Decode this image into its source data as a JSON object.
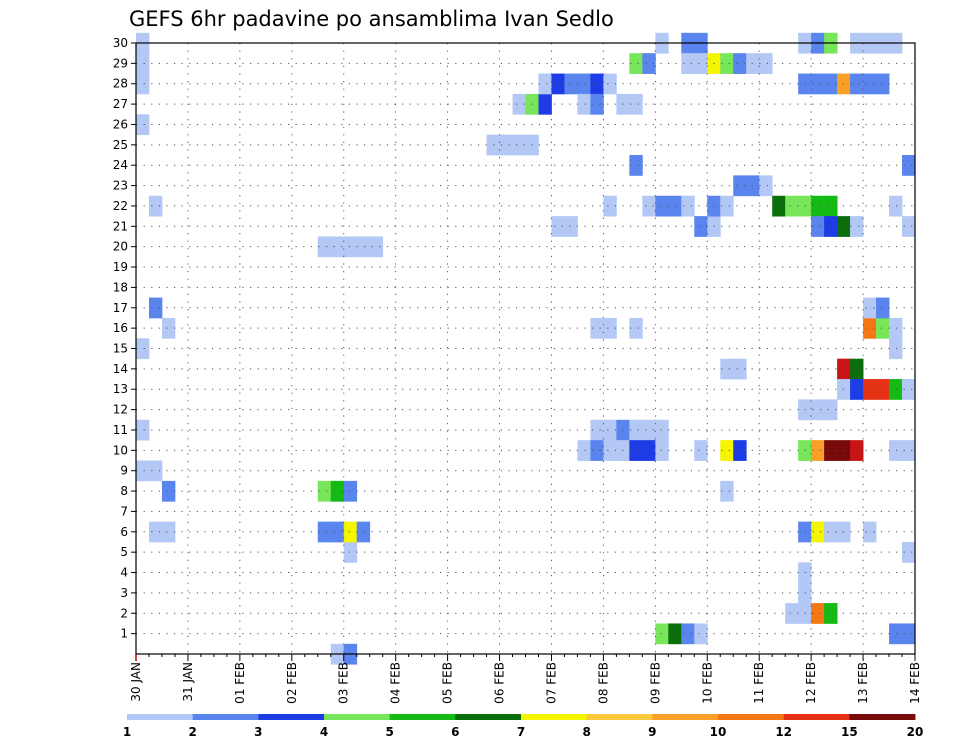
{
  "chart_data": {
    "type": "heatmap",
    "title": "GEFS 6hr padavine po ansamblima Ivan Sedlo",
    "x_tick_labels": [
      "30 JAN",
      "31 JAN",
      "01 FEB",
      "02 FEB",
      "03 FEB",
      "04 FEB",
      "05 FEB",
      "06 FEB",
      "07 FEB",
      "08 FEB",
      "09 FEB",
      "10 FEB",
      "11 FEB",
      "12 FEB",
      "13 FEB",
      "14 FEB"
    ],
    "y_tick_labels": [
      "1",
      "2",
      "3",
      "4",
      "5",
      "6",
      "7",
      "8",
      "9",
      "10",
      "11",
      "12",
      "13",
      "14",
      "15",
      "16",
      "17",
      "18",
      "19",
      "20",
      "21",
      "22",
      "23",
      "24",
      "25",
      "26",
      "27",
      "28",
      "29",
      "30"
    ],
    "xlim": [
      0,
      60
    ],
    "ylim": [
      0,
      30
    ],
    "x_unit": "6-hour steps from 30 JAN 00Z",
    "grid": "dotted",
    "colorbar": {
      "labels": [
        "1",
        "2",
        "3",
        "4",
        "5",
        "6",
        "7",
        "8",
        "9",
        "10",
        "12",
        "15",
        "20"
      ],
      "colors": [
        "#b4c8f5",
        "#5a84ee",
        "#1e3ce6",
        "#78e65a",
        "#14bb14",
        "#0a6e0a",
        "#f5f500",
        "#fac83c",
        "#faa028",
        "#f57814",
        "#e63214",
        "#c81414",
        "#780a0a"
      ]
    },
    "cells": [
      [
        0,
        30,
        1
      ],
      [
        0,
        29,
        1
      ],
      [
        0,
        28,
        1
      ],
      [
        0,
        26,
        1
      ],
      [
        0,
        15,
        1
      ],
      [
        0,
        11,
        1
      ],
      [
        0,
        9,
        1
      ],
      [
        1,
        9,
        1
      ],
      [
        1,
        22,
        1
      ],
      [
        1,
        17,
        2
      ],
      [
        1,
        6,
        1
      ],
      [
        2,
        16,
        1
      ],
      [
        2,
        8,
        2
      ],
      [
        2,
        6,
        1
      ],
      [
        14,
        20,
        1
      ],
      [
        15,
        20,
        1
      ],
      [
        16,
        20,
        1
      ],
      [
        17,
        20,
        1
      ],
      [
        18,
        20,
        1
      ],
      [
        14,
        8,
        4
      ],
      [
        15,
        8,
        5
      ],
      [
        16,
        8,
        2
      ],
      [
        16,
        5,
        1
      ],
      [
        14,
        6,
        2
      ],
      [
        15,
        6,
        2
      ],
      [
        16,
        6,
        7
      ],
      [
        17,
        6,
        2
      ],
      [
        15,
        0,
        1
      ],
      [
        16,
        0,
        2
      ],
      [
        27,
        25,
        1
      ],
      [
        28,
        25,
        1
      ],
      [
        29,
        25,
        1
      ],
      [
        30,
        25,
        1
      ],
      [
        29,
        27,
        1
      ],
      [
        30,
        27,
        4
      ],
      [
        31,
        27,
        3
      ],
      [
        31,
        28,
        1
      ],
      [
        32,
        28,
        3
      ],
      [
        33,
        28,
        2
      ],
      [
        34,
        28,
        2
      ],
      [
        35,
        28,
        3
      ],
      [
        36,
        28,
        1
      ],
      [
        32,
        21,
        1
      ],
      [
        33,
        21,
        1
      ],
      [
        34,
        27,
        1
      ],
      [
        35,
        27,
        2
      ],
      [
        36,
        22,
        1
      ],
      [
        35,
        16,
        1
      ],
      [
        36,
        16,
        1
      ],
      [
        37,
        27,
        1
      ],
      [
        38,
        27,
        1
      ],
      [
        38,
        24,
        2
      ],
      [
        38,
        29,
        4
      ],
      [
        39,
        29,
        2
      ],
      [
        38,
        16,
        1
      ],
      [
        35,
        11,
        1
      ],
      [
        36,
        11,
        1
      ],
      [
        37,
        11,
        2
      ],
      [
        38,
        11,
        1
      ],
      [
        39,
        11,
        1
      ],
      [
        40,
        11,
        1
      ],
      [
        34,
        10,
        1
      ],
      [
        35,
        10,
        2
      ],
      [
        36,
        10,
        1
      ],
      [
        37,
        10,
        1
      ],
      [
        38,
        10,
        3
      ],
      [
        39,
        10,
        3
      ],
      [
        40,
        10,
        1
      ],
      [
        39,
        22,
        1
      ],
      [
        40,
        22,
        2
      ],
      [
        41,
        22,
        2
      ],
      [
        42,
        22,
        1
      ],
      [
        40,
        30,
        1
      ],
      [
        42,
        30,
        2
      ],
      [
        43,
        30,
        2
      ],
      [
        40,
        1,
        4
      ],
      [
        41,
        1,
        6
      ],
      [
        42,
        1,
        2
      ],
      [
        43,
        1,
        1
      ],
      [
        42,
        29,
        1
      ],
      [
        43,
        29,
        1
      ],
      [
        44,
        29,
        7
      ],
      [
        45,
        29,
        4
      ],
      [
        46,
        29,
        2
      ],
      [
        47,
        29,
        1
      ],
      [
        48,
        29,
        1
      ],
      [
        43,
        21,
        2
      ],
      [
        44,
        21,
        1
      ],
      [
        44,
        22,
        2
      ],
      [
        45,
        22,
        1
      ],
      [
        43,
        10,
        1
      ],
      [
        45,
        10,
        7
      ],
      [
        46,
        10,
        3
      ],
      [
        45,
        14,
        1
      ],
      [
        46,
        14,
        1
      ],
      [
        45,
        8,
        1
      ],
      [
        46,
        23,
        2
      ],
      [
        47,
        23,
        2
      ],
      [
        48,
        23,
        1
      ],
      [
        49,
        22,
        6
      ],
      [
        50,
        22,
        4
      ],
      [
        51,
        22,
        4
      ],
      [
        52,
        22,
        5
      ],
      [
        53,
        22,
        5
      ],
      [
        51,
        30,
        1
      ],
      [
        52,
        30,
        2
      ],
      [
        53,
        30,
        4
      ],
      [
        51,
        28,
        2
      ],
      [
        52,
        28,
        2
      ],
      [
        53,
        28,
        2
      ],
      [
        54,
        28,
        9
      ],
      [
        55,
        28,
        2
      ],
      [
        56,
        28,
        2
      ],
      [
        57,
        28,
        2
      ],
      [
        51,
        12,
        1
      ],
      [
        52,
        12,
        1
      ],
      [
        53,
        12,
        1
      ],
      [
        51,
        10,
        4
      ],
      [
        52,
        10,
        9
      ],
      [
        53,
        10,
        13
      ],
      [
        54,
        10,
        13
      ],
      [
        55,
        10,
        12
      ],
      [
        51,
        6,
        2
      ],
      [
        52,
        6,
        7
      ],
      [
        53,
        6,
        1
      ],
      [
        54,
        6,
        1
      ],
      [
        56,
        6,
        1
      ],
      [
        51,
        4,
        1
      ],
      [
        51,
        3,
        1
      ],
      [
        50,
        2,
        1
      ],
      [
        51,
        2,
        1
      ],
      [
        52,
        2,
        10
      ],
      [
        53,
        2,
        5
      ],
      [
        52,
        21,
        2
      ],
      [
        53,
        21,
        3
      ],
      [
        54,
        21,
        6
      ],
      [
        55,
        21,
        1
      ],
      [
        54,
        14,
        12
      ],
      [
        55,
        14,
        6
      ],
      [
        54,
        13,
        1
      ],
      [
        55,
        13,
        3
      ],
      [
        56,
        13,
        11
      ],
      [
        57,
        13,
        11
      ],
      [
        58,
        13,
        5
      ],
      [
        55,
        30,
        1
      ],
      [
        56,
        30,
        1
      ],
      [
        57,
        30,
        1
      ],
      [
        58,
        30,
        1
      ],
      [
        56,
        16,
        10
      ],
      [
        57,
        16,
        4
      ],
      [
        58,
        16,
        1
      ],
      [
        56,
        17,
        1
      ],
      [
        57,
        17,
        2
      ],
      [
        58,
        15,
        1
      ],
      [
        58,
        22,
        1
      ],
      [
        58,
        1,
        2
      ],
      [
        59,
        1,
        2
      ],
      [
        59,
        24,
        2
      ],
      [
        59,
        21,
        1
      ],
      [
        59,
        10,
        1
      ],
      [
        58,
        10,
        1
      ],
      [
        59,
        13,
        1
      ],
      [
        59,
        5,
        1
      ]
    ]
  }
}
